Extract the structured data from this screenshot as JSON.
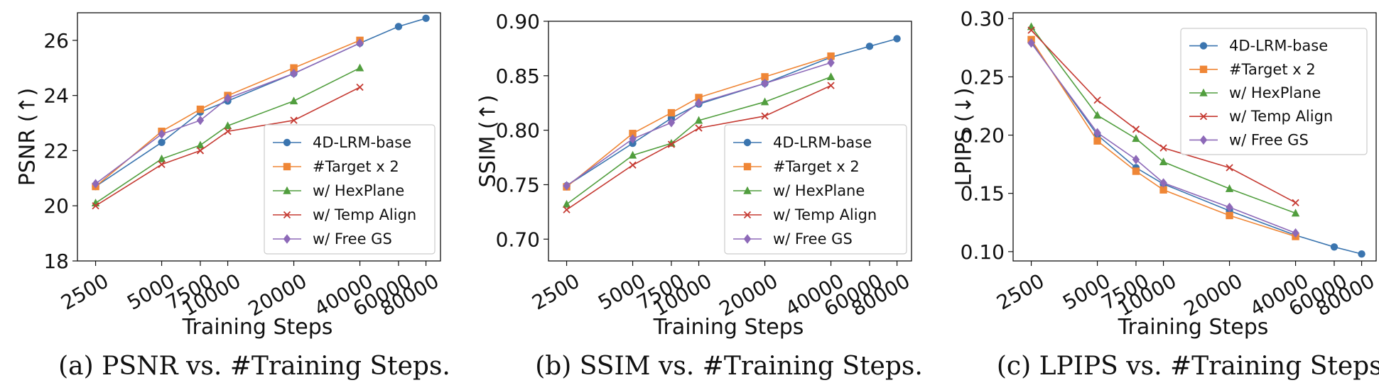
{
  "series_styles": [
    {
      "name": "4D-LRM-base",
      "color": "#3b75af",
      "marker": "circle"
    },
    {
      "name": "#Target x 2",
      "color": "#ef8636",
      "marker": "square"
    },
    {
      "name": "w/ HexPlane",
      "color": "#519e3e",
      "marker": "triangle"
    },
    {
      "name": "w/ Temp Align",
      "color": "#c53a32",
      "marker": "x"
    },
    {
      "name": "w/ Free GS",
      "color": "#8d69b8",
      "marker": "diamond"
    }
  ],
  "chart_data": [
    {
      "type": "line",
      "caption": "(a) PSNR vs. #Training Steps.",
      "xlabel": "Training Steps",
      "ylabel": "PSNR (↑)",
      "x_scale": "log",
      "x_ticks": [
        2500,
        5000,
        7500,
        10000,
        20000,
        40000,
        60000,
        80000
      ],
      "ylim": [
        18,
        27
      ],
      "y_ticks": [
        18,
        20,
        22,
        24,
        26
      ],
      "y_decimals": 0,
      "grid": false,
      "legend_position": "lower-right",
      "series": [
        {
          "name": "4D-LRM-base",
          "x": [
            2500,
            5000,
            7500,
            10000,
            20000,
            40000,
            60000,
            80000
          ],
          "values": [
            20.7,
            22.3,
            23.4,
            23.8,
            24.8,
            25.9,
            26.5,
            26.8
          ]
        },
        {
          "name": "#Target x 2",
          "x": [
            2500,
            5000,
            7500,
            10000,
            20000,
            40000
          ],
          "values": [
            20.7,
            22.7,
            23.5,
            24.0,
            25.0,
            26.0
          ]
        },
        {
          "name": "w/ HexPlane",
          "x": [
            2500,
            5000,
            7500,
            10000,
            20000,
            40000
          ],
          "values": [
            20.1,
            21.7,
            22.2,
            22.9,
            23.8,
            25.0
          ]
        },
        {
          "name": "w/ Temp Align",
          "x": [
            2500,
            5000,
            7500,
            10000,
            20000,
            40000
          ],
          "values": [
            20.0,
            21.5,
            22.0,
            22.7,
            23.1,
            24.3
          ]
        },
        {
          "name": "w/ Free GS",
          "x": [
            2500,
            5000,
            7500,
            10000,
            20000,
            40000
          ],
          "values": [
            20.8,
            22.6,
            23.1,
            23.9,
            24.8,
            25.9
          ]
        }
      ]
    },
    {
      "type": "line",
      "caption": "(b) SSIM vs. #Training Steps.",
      "xlabel": "Training Steps",
      "ylabel": "SSIM (↑)",
      "x_scale": "log",
      "x_ticks": [
        2500,
        5000,
        7500,
        10000,
        20000,
        40000,
        60000,
        80000
      ],
      "ylim": [
        0.68,
        0.9
      ],
      "y_ticks": [
        0.7,
        0.75,
        0.8,
        0.85,
        0.9
      ],
      "y_decimals": 2,
      "grid": false,
      "legend_position": "lower-right",
      "series": [
        {
          "name": "4D-LRM-base",
          "x": [
            2500,
            5000,
            7500,
            10000,
            20000,
            40000,
            60000,
            80000
          ],
          "values": [
            0.749,
            0.788,
            0.811,
            0.824,
            0.843,
            0.867,
            0.877,
            0.884
          ]
        },
        {
          "name": "#Target x 2",
          "x": [
            2500,
            5000,
            7500,
            10000,
            20000,
            40000
          ],
          "values": [
            0.748,
            0.797,
            0.816,
            0.83,
            0.849,
            0.868
          ]
        },
        {
          "name": "w/ HexPlane",
          "x": [
            2500,
            5000,
            7500,
            10000,
            20000,
            40000
          ],
          "values": [
            0.732,
            0.777,
            0.788,
            0.809,
            0.826,
            0.849
          ]
        },
        {
          "name": "w/ Temp Align",
          "x": [
            2500,
            5000,
            7500,
            10000,
            20000,
            40000
          ],
          "values": [
            0.727,
            0.768,
            0.787,
            0.802,
            0.813,
            0.841
          ]
        },
        {
          "name": "w/ Free GS",
          "x": [
            2500,
            5000,
            7500,
            10000,
            20000,
            40000
          ],
          "values": [
            0.749,
            0.792,
            0.807,
            0.825,
            0.843,
            0.862
          ]
        }
      ]
    },
    {
      "type": "line",
      "caption": "(c) LPIPS vs. #Training Steps.",
      "xlabel": "Training Steps",
      "ylabel": "LPIPS (↓)",
      "x_scale": "log",
      "x_ticks": [
        2500,
        5000,
        7500,
        10000,
        20000,
        40000,
        60000,
        80000
      ],
      "ylim": [
        0.092,
        0.305
      ],
      "y_ticks": [
        0.1,
        0.15,
        0.2,
        0.25,
        0.3
      ],
      "y_decimals": 2,
      "grid": false,
      "legend_position": "upper-right",
      "series": [
        {
          "name": "4D-LRM-base",
          "x": [
            2500,
            5000,
            7500,
            10000,
            20000,
            40000,
            60000,
            80000
          ],
          "values": [
            0.28,
            0.2,
            0.172,
            0.158,
            0.135,
            0.114,
            0.104,
            0.098
          ]
        },
        {
          "name": "#Target x 2",
          "x": [
            2500,
            5000,
            7500,
            10000,
            20000,
            40000
          ],
          "values": [
            0.282,
            0.195,
            0.169,
            0.153,
            0.131,
            0.113
          ]
        },
        {
          "name": "w/ HexPlane",
          "x": [
            2500,
            5000,
            7500,
            10000,
            20000,
            40000
          ],
          "values": [
            0.293,
            0.217,
            0.197,
            0.177,
            0.154,
            0.133
          ]
        },
        {
          "name": "w/ Temp Align",
          "x": [
            2500,
            5000,
            7500,
            10000,
            20000,
            40000
          ],
          "values": [
            0.29,
            0.23,
            0.205,
            0.189,
            0.172,
            0.142
          ]
        },
        {
          "name": "w/ Free GS",
          "x": [
            2500,
            5000,
            7500,
            10000,
            20000,
            40000
          ],
          "values": [
            0.279,
            0.202,
            0.179,
            0.159,
            0.138,
            0.116
          ]
        }
      ]
    }
  ]
}
